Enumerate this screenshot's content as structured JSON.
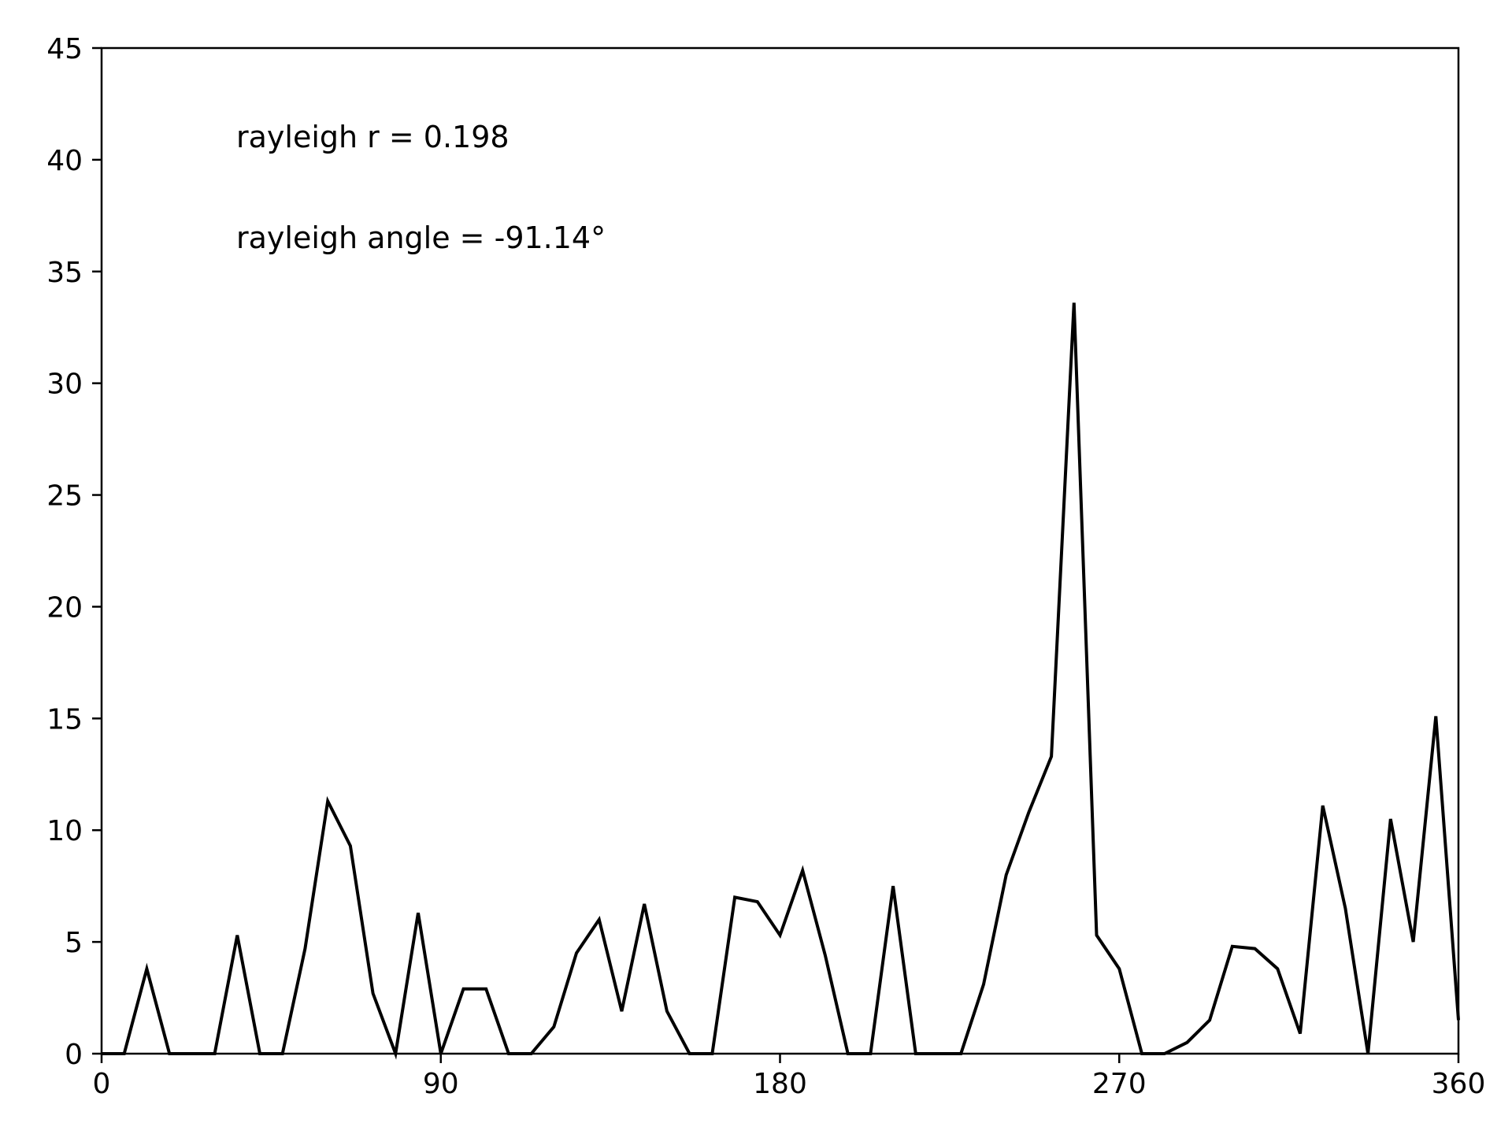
{
  "chart_data": {
    "type": "line",
    "title": "",
    "xlabel": "",
    "ylabel": "",
    "xlim": [
      0,
      360
    ],
    "ylim": [
      0,
      45
    ],
    "xticks": [
      0,
      90,
      180,
      270,
      360
    ],
    "yticks": [
      0,
      5,
      10,
      15,
      20,
      25,
      30,
      35,
      40,
      45
    ],
    "grid": false,
    "line_color": "#000000",
    "annotations": [
      {
        "text": "rayleigh r = 0.198"
      },
      {
        "text": "rayleigh angle = -91.14$^\\circ$",
        "display": "rayleigh angle = -91.14°"
      }
    ],
    "series": [
      {
        "x": [
          0,
          6,
          12,
          18,
          24,
          30,
          36,
          42,
          48,
          54,
          60,
          66,
          72,
          78,
          84,
          90,
          96,
          102,
          108,
          114,
          120,
          126,
          132,
          138,
          144,
          150,
          156,
          162,
          168,
          174,
          180,
          186,
          192,
          198,
          204,
          210,
          216,
          222,
          228,
          234,
          240,
          246,
          252,
          258,
          264,
          270,
          276,
          282,
          288,
          294,
          300,
          306,
          312,
          318,
          324,
          330,
          336,
          342,
          348,
          354,
          360
        ],
        "values": [
          0,
          0,
          3.8,
          0,
          0,
          0,
          5.3,
          0,
          0,
          4.7,
          11.3,
          9.3,
          2.7,
          0,
          6.3,
          0,
          2.9,
          2.9,
          0,
          0,
          1.2,
          4.5,
          6.0,
          1.9,
          6.7,
          1.9,
          0,
          0,
          7.0,
          6.8,
          5.3,
          8.2,
          4.4,
          0,
          0,
          7.5,
          0,
          0,
          0,
          3.1,
          8.0,
          10.8,
          13.3,
          33.6,
          5.3,
          3.8,
          0,
          0,
          0.5,
          1.5,
          4.8,
          4.7,
          3.8,
          0.9,
          11.1,
          6.5,
          0,
          10.5,
          5.0,
          15.1,
          1.5
        ]
      }
    ]
  }
}
